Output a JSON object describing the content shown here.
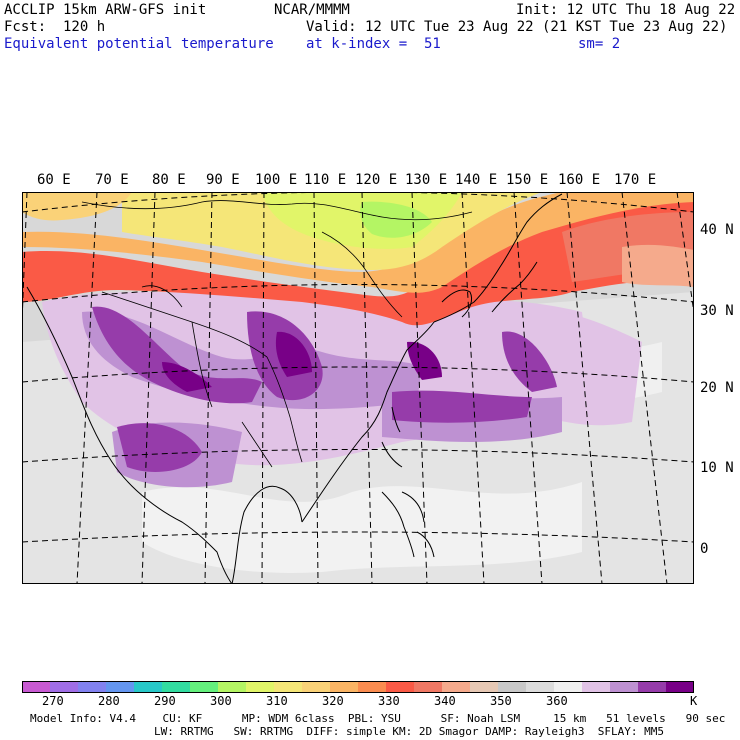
{
  "header": {
    "model_title": "ACCLIP 15km ARW-GFS init",
    "org": "NCAR/MMMM",
    "init": "Init: 12 UTC Thu 18 Aug 22",
    "forecast": "Fcst:  120 h",
    "valid": "Valid: 12 UTC Tue 23 Aug 22 (21 KST Tue 23 Aug 22)",
    "field": "Equivalent potential temperature",
    "level": "at k-index =  51",
    "smoothing": "sm= 2"
  },
  "map": {
    "lon_labels": [
      "60 E",
      "70 E",
      "80 E",
      "90 E",
      "100 E",
      "110 E",
      "120 E",
      "130 E",
      "140 E",
      "150 E",
      "160 E",
      "170 E"
    ],
    "lat_labels": [
      "40 N",
      "30 N",
      "20 N",
      "10 N",
      "0"
    ],
    "land_color": "#e8e8e8",
    "boundary_color": "#000000"
  },
  "colorbar": {
    "colors": [
      "#c85ad2",
      "#a06ee6",
      "#8282f0",
      "#6496f0",
      "#28c8c8",
      "#32dca0",
      "#64f07d",
      "#b4f564",
      "#e1f569",
      "#f5e678",
      "#fad278",
      "#fab464",
      "#fa8c50",
      "#fa5a46",
      "#f07864",
      "#f5aa8c",
      "#e6c8b4",
      "#c8c8c8",
      "#dcdcdc",
      "#f0f0f0",
      "#e1c3e6",
      "#be91d2",
      "#963caa",
      "#780087"
    ],
    "tick_labels": [
      "270",
      "280",
      "290",
      "300",
      "310",
      "320",
      "330",
      "340",
      "350",
      "360"
    ],
    "unit": "K"
  },
  "footer": {
    "line1": "Model Info: V4.4    CU: KF      MP: WDM 6class  PBL: YSU      SF: Noah LSM     15 km   51 levels   90 sec",
    "line2": "LW: RRTMG   SW: RRTMG  DIFF: simple KM: 2D Smagor DAMP: Rayleigh3  SFLAY: MM5"
  }
}
